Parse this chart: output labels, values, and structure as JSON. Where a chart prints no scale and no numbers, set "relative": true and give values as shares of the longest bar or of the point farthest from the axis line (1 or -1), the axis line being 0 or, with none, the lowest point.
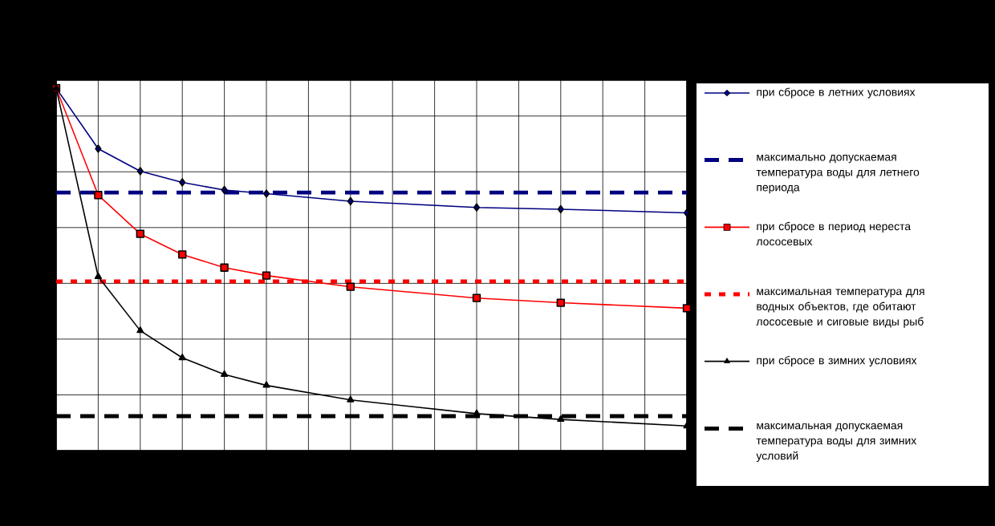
{
  "chart_data": {
    "type": "line",
    "relative": true,
    "grid": true,
    "legend": "right",
    "categories": [
      null,
      null,
      null,
      null,
      null,
      null,
      null,
      null,
      null,
      null,
      null,
      null,
      null,
      null,
      null,
      null
    ],
    "series": [
      {
        "name": "при сбросе в летних условиях",
        "color": "#000080",
        "marker": "diamond",
        "values": [
          1.0,
          0.833,
          0.771,
          0.74,
          0.719,
          0.709,
          null,
          0.688,
          null,
          null,
          0.671,
          null,
          0.666,
          null,
          null,
          0.656
        ]
      },
      {
        "name": "при сбросе в период нереста лососевых",
        "color": "#ff0000",
        "marker": "square",
        "values": [
          1.0,
          0.705,
          0.598,
          0.541,
          0.505,
          0.483,
          null,
          0.452,
          null,
          null,
          0.421,
          null,
          0.408,
          null,
          null,
          0.393
        ]
      },
      {
        "name": "при сбросе в зимних условиях",
        "color": "#000000",
        "marker": "triangle",
        "values": [
          1.0,
          0.48,
          0.331,
          0.256,
          0.21,
          0.18,
          null,
          0.14,
          null,
          null,
          0.102,
          null,
          0.086,
          null,
          null,
          0.068
        ]
      }
    ],
    "ref_lines": [
      {
        "axis": "y",
        "value": 0.712,
        "label": "максимально допускаемая температура воды для летнего периода",
        "color": "#000080",
        "line_style": "dashed"
      },
      {
        "axis": "y",
        "value": 0.467,
        "label": "максимальная температура для водных объектов, где обитают лососевые и сиговые виды рыб",
        "color": "#ff0000",
        "line_style": "dotted"
      },
      {
        "axis": "y",
        "value": 0.095,
        "label": "максимальная допускаемая температура воды для зимних условий",
        "color": "#000000",
        "line_style": "dashed"
      }
    ]
  }
}
